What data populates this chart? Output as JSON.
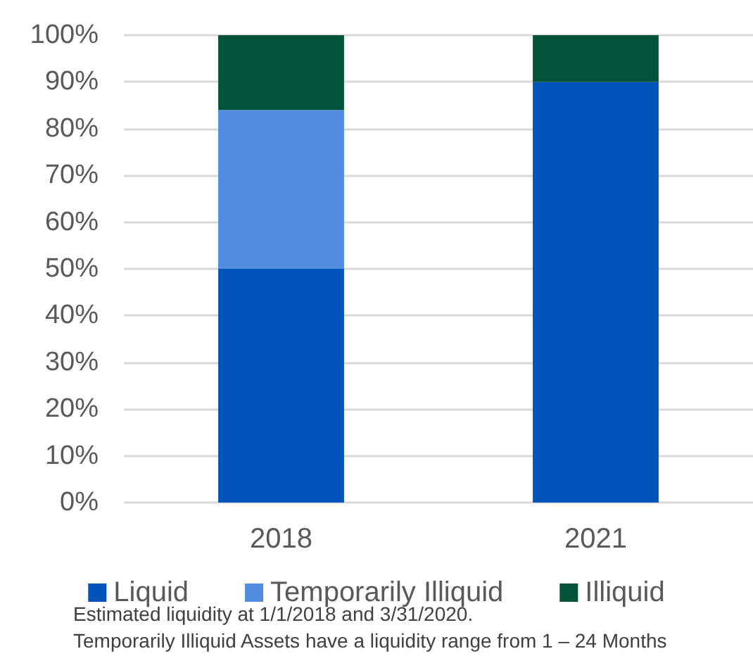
{
  "chart_data": {
    "type": "bar",
    "stacked": true,
    "categories": [
      "2018",
      "2021"
    ],
    "series": [
      {
        "name": "Liquid",
        "color": "#0053b9",
        "values": [
          50,
          90
        ]
      },
      {
        "name": "Temporarily Illiquid",
        "color": "#528cde",
        "values": [
          34,
          0
        ]
      },
      {
        "name": "Illiquid",
        "color": "#03533b",
        "values": [
          16,
          10
        ]
      }
    ],
    "ylim": [
      0,
      100
    ],
    "yticks": [
      {
        "value": 0,
        "label": "0%"
      },
      {
        "value": 10,
        "label": "10%"
      },
      {
        "value": 20,
        "label": "20%"
      },
      {
        "value": 30,
        "label": "30%"
      },
      {
        "value": 40,
        "label": "40%"
      },
      {
        "value": 50,
        "label": "50%"
      },
      {
        "value": 60,
        "label": "60%"
      },
      {
        "value": 70,
        "label": "70%"
      },
      {
        "value": 80,
        "label": "80%"
      },
      {
        "value": 90,
        "label": "90%"
      },
      {
        "value": 100,
        "label": "100%"
      }
    ],
    "grid": "y",
    "legend": "bottom",
    "annotations": [
      "Estimated liquidity at 1/1/2018 and 3/31/2020.",
      "Temporarily Illiquid Assets have a liquidity range from 1 – 24 Months"
    ]
  }
}
